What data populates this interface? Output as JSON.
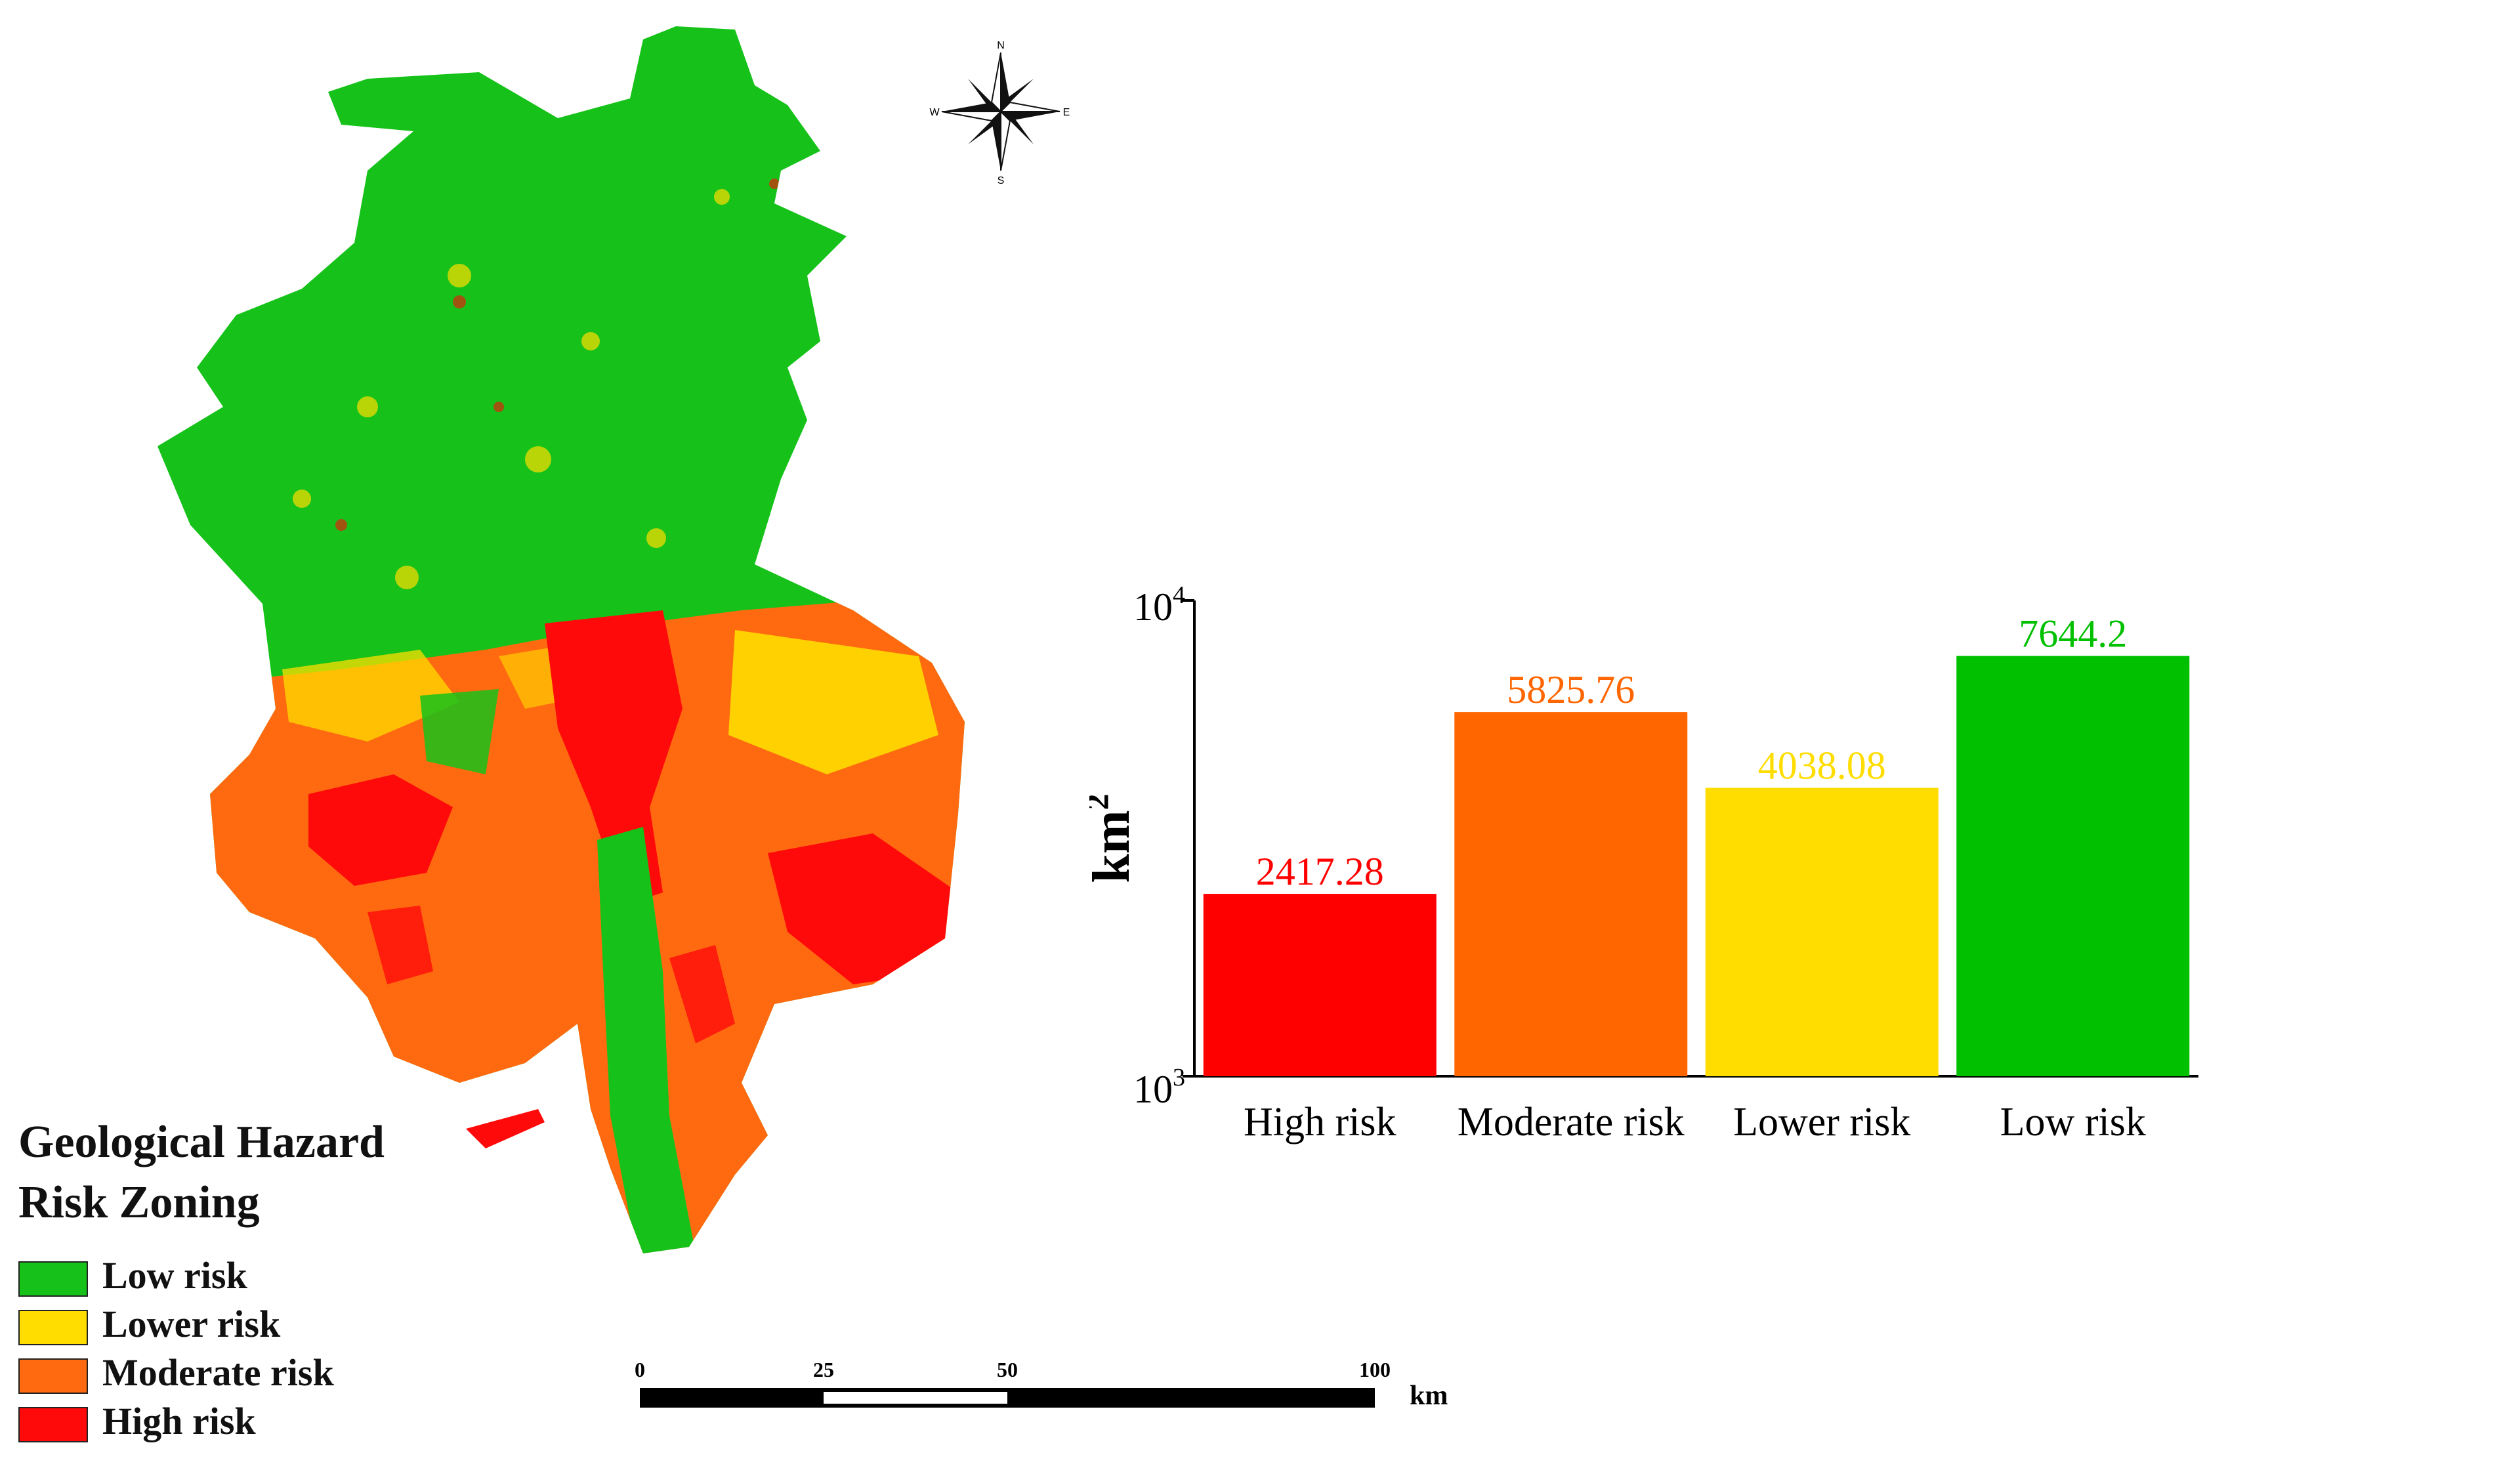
{
  "map": {
    "legend_title_line1": "Geological Hazard",
    "legend_title_line2": "Risk Zoning",
    "legend": [
      {
        "label": "Low risk",
        "color": "#16c21a"
      },
      {
        "label": "Lower risk",
        "color": "#ffdd00"
      },
      {
        "label": "Moderate risk",
        "color": "#ff6a10"
      },
      {
        "label": "High risk",
        "color": "#ff0a0a"
      }
    ],
    "compass": {
      "n": "N",
      "s": "S",
      "e": "E",
      "w": "W"
    },
    "scale_bar": {
      "ticks": [
        "0",
        "25",
        "50",
        "100"
      ],
      "unit": "km"
    }
  },
  "chart_data": {
    "type": "bar",
    "categories": [
      "High risk",
      "Moderate risk",
      "Lower risk",
      "Low risk"
    ],
    "values": [
      2417.28,
      5825.76,
      4038.08,
      7644.2
    ],
    "value_labels": [
      "2417.28",
      "5825.76",
      "4038.08",
      "7644.2"
    ],
    "colors": [
      "#ff0000",
      "#ff6600",
      "#ffdd00",
      "#00c000"
    ],
    "ylabel_base": "km",
    "ylabel_sup": "2",
    "yscale": "log",
    "ylim": [
      1000,
      10000
    ],
    "yticks": [
      {
        "base": "10",
        "sup": "3"
      },
      {
        "base": "10",
        "sup": "4"
      }
    ],
    "grid": false
  }
}
